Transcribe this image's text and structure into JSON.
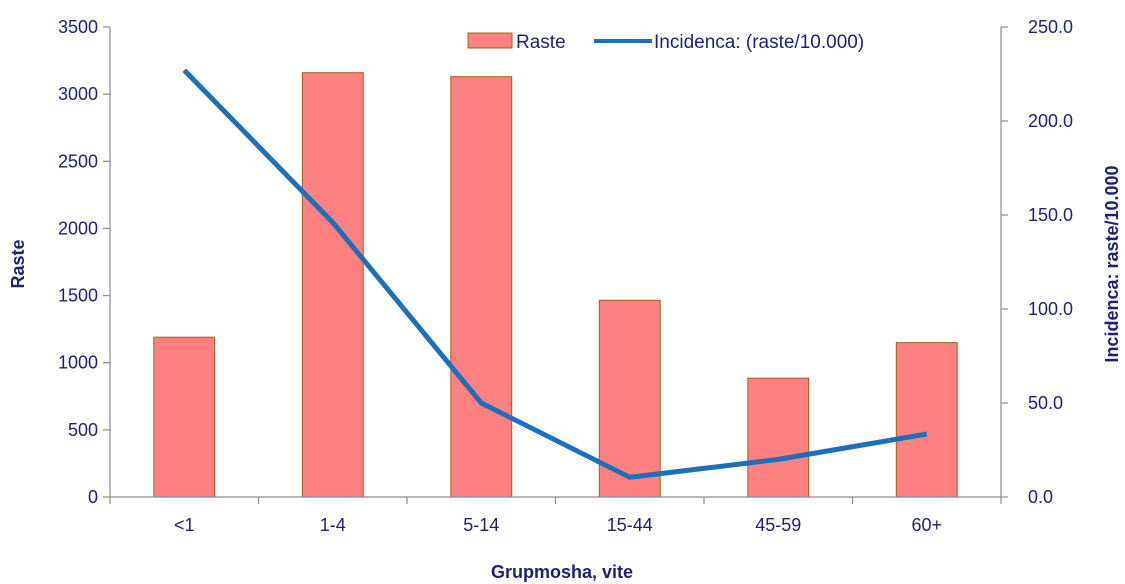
{
  "chart_data": {
    "type": "bar",
    "categories": [
      "<1",
      "1-4",
      "5-14",
      "15-44",
      "45-59",
      "60+"
    ],
    "series": [
      {
        "name": "Raste",
        "type": "bar",
        "axis": "left",
        "color": "#ff8080",
        "values": [
          1190,
          3160,
          3130,
          1465,
          885,
          1150
        ]
      },
      {
        "name": "Incidenca: (raste/10.000)",
        "type": "line",
        "axis": "right",
        "color": "#1f6fb8",
        "values": [
          227,
          146,
          50,
          10.5,
          20,
          33.5
        ]
      }
    ],
    "xlabel": "Grupmosha, vite",
    "ylabel": "Raste",
    "y2label": "Incidenca: raste/10.000",
    "ylim": [
      0,
      3500
    ],
    "y2lim": [
      0,
      250
    ],
    "yticks": [
      "0",
      "500",
      "1000",
      "1500",
      "2000",
      "2500",
      "3000",
      "3500"
    ],
    "y2ticks": [
      "0.0",
      "50.0",
      "100.0",
      "150.0",
      "200.0",
      "250.0"
    ],
    "legend": "top-right",
    "grid": false
  }
}
